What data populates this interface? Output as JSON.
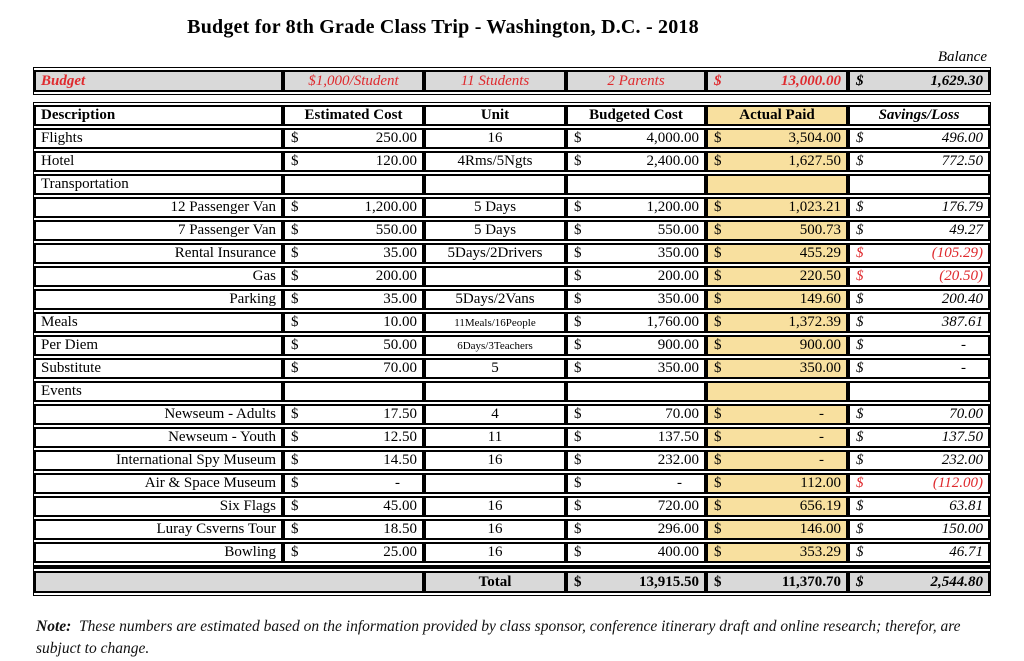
{
  "title": "Budget for 8th Grade Class Trip - Washington, D.C. - 2018",
  "balance_label": "Balance",
  "budget_row": {
    "label": "Budget",
    "per_student": "$1,000/Student",
    "students": "11 Students",
    "parents": "2 Parents",
    "total": {
      "s": "$",
      "v": "13,000.00"
    },
    "balance": {
      "s": "$",
      "v": "1,629.30"
    }
  },
  "columns": [
    "Description",
    "Estimated Cost",
    "Unit",
    "Budgeted Cost",
    "Actual Paid",
    "Savings/Loss"
  ],
  "rows": [
    {
      "desc": "Flights",
      "align": "left",
      "est": {
        "s": "$",
        "v": "250.00"
      },
      "unit": "16",
      "bud": {
        "s": "$",
        "v": "4,000.00"
      },
      "act": {
        "s": "$",
        "v": "3,504.00"
      },
      "sav": {
        "s": "$",
        "v": "496.00"
      }
    },
    {
      "desc": "Hotel",
      "align": "left",
      "est": {
        "s": "$",
        "v": "120.00"
      },
      "unit": "4Rms/5Ngts",
      "bud": {
        "s": "$",
        "v": "2,400.00"
      },
      "act": {
        "s": "$",
        "v": "1,627.50"
      },
      "sav": {
        "s": "$",
        "v": "772.50"
      }
    },
    {
      "desc": "Transportation",
      "align": "left",
      "section": true,
      "est": null,
      "unit": "",
      "bud": null,
      "act": null,
      "sav": null
    },
    {
      "desc": "12 Passenger Van",
      "align": "right",
      "est": {
        "s": "$",
        "v": "1,200.00"
      },
      "unit": "5 Days",
      "bud": {
        "s": "$",
        "v": "1,200.00"
      },
      "act": {
        "s": "$",
        "v": "1,023.21"
      },
      "sav": {
        "s": "$",
        "v": "176.79"
      }
    },
    {
      "desc": "7 Passenger Van",
      "align": "right",
      "est": {
        "s": "$",
        "v": "550.00"
      },
      "unit": "5 Days",
      "bud": {
        "s": "$",
        "v": "550.00"
      },
      "act": {
        "s": "$",
        "v": "500.73"
      },
      "sav": {
        "s": "$",
        "v": "49.27"
      }
    },
    {
      "desc": "Rental Insurance",
      "align": "right",
      "est": {
        "s": "$",
        "v": "35.00"
      },
      "unit": "5Days/2Drivers",
      "bud": {
        "s": "$",
        "v": "350.00"
      },
      "act": {
        "s": "$",
        "v": "455.29"
      },
      "sav": {
        "s": "$",
        "v": "(105.29)",
        "neg": true
      }
    },
    {
      "desc": "Gas",
      "align": "right",
      "est": {
        "s": "$",
        "v": "200.00"
      },
      "unit": "",
      "bud": {
        "s": "$",
        "v": "200.00"
      },
      "act": {
        "s": "$",
        "v": "220.50"
      },
      "sav": {
        "s": "$",
        "v": "(20.50)",
        "neg": true
      }
    },
    {
      "desc": "Parking",
      "align": "right",
      "est": {
        "s": "$",
        "v": "35.00"
      },
      "unit": "5Days/2Vans",
      "bud": {
        "s": "$",
        "v": "350.00"
      },
      "act": {
        "s": "$",
        "v": "149.60"
      },
      "sav": {
        "s": "$",
        "v": "200.40"
      }
    },
    {
      "desc": "Meals",
      "align": "left",
      "est": {
        "s": "$",
        "v": "10.00"
      },
      "unit": "11Meals/16People",
      "unit_small": true,
      "bud": {
        "s": "$",
        "v": "1,760.00"
      },
      "act": {
        "s": "$",
        "v": "1,372.39"
      },
      "sav": {
        "s": "$",
        "v": "387.61"
      }
    },
    {
      "desc": "Per Diem",
      "align": "left",
      "est": {
        "s": "$",
        "v": "50.00"
      },
      "unit": "6Days/3Teachers",
      "unit_small": true,
      "bud": {
        "s": "$",
        "v": "900.00"
      },
      "act": {
        "s": "$",
        "v": "900.00"
      },
      "sav": {
        "s": "$",
        "v": "-",
        "dash": true
      }
    },
    {
      "desc": "Substitute",
      "align": "left",
      "est": {
        "s": "$",
        "v": "70.00"
      },
      "unit": "5",
      "bud": {
        "s": "$",
        "v": "350.00"
      },
      "act": {
        "s": "$",
        "v": "350.00"
      },
      "sav": {
        "s": "$",
        "v": "-",
        "dash": true
      }
    },
    {
      "desc": "Events",
      "align": "left",
      "section": true,
      "est": null,
      "unit": "",
      "bud": null,
      "act": null,
      "sav": null
    },
    {
      "desc": "Newseum - Adults",
      "align": "right",
      "est": {
        "s": "$",
        "v": "17.50"
      },
      "unit": "4",
      "bud": {
        "s": "$",
        "v": "70.00"
      },
      "act": {
        "s": "$",
        "v": "-",
        "dash": true
      },
      "sav": {
        "s": "$",
        "v": "70.00"
      }
    },
    {
      "desc": "Newseum - Youth",
      "align": "right",
      "est": {
        "s": "$",
        "v": "12.50"
      },
      "unit": "11",
      "bud": {
        "s": "$",
        "v": "137.50"
      },
      "act": {
        "s": "$",
        "v": "-",
        "dash": true
      },
      "sav": {
        "s": "$",
        "v": "137.50"
      }
    },
    {
      "desc": "International Spy Museum",
      "align": "right",
      "est": {
        "s": "$",
        "v": "14.50"
      },
      "unit": "16",
      "bud": {
        "s": "$",
        "v": "232.00"
      },
      "act": {
        "s": "$",
        "v": "-",
        "dash": true
      },
      "sav": {
        "s": "$",
        "v": "232.00"
      }
    },
    {
      "desc": "Air & Space Museum",
      "align": "right",
      "est": {
        "s": "$",
        "v": "-",
        "dash": true
      },
      "unit": "",
      "bud": {
        "s": "$",
        "v": "-",
        "dash": true
      },
      "act": {
        "s": "$",
        "v": "112.00"
      },
      "sav": {
        "s": "$",
        "v": "(112.00)",
        "neg": true
      }
    },
    {
      "desc": "Six Flags",
      "align": "right",
      "est": {
        "s": "$",
        "v": "45.00"
      },
      "unit": "16",
      "bud": {
        "s": "$",
        "v": "720.00"
      },
      "act": {
        "s": "$",
        "v": "656.19"
      },
      "sav": {
        "s": "$",
        "v": "63.81"
      }
    },
    {
      "desc": "Luray Csverns Tour",
      "align": "right",
      "est": {
        "s": "$",
        "v": "18.50"
      },
      "unit": "16",
      "bud": {
        "s": "$",
        "v": "296.00"
      },
      "act": {
        "s": "$",
        "v": "146.00"
      },
      "sav": {
        "s": "$",
        "v": "150.00"
      }
    },
    {
      "desc": "Bowling",
      "align": "right",
      "est": {
        "s": "$",
        "v": "25.00"
      },
      "unit": "16",
      "bud": {
        "s": "$",
        "v": "400.00"
      },
      "act": {
        "s": "$",
        "v": "353.29"
      },
      "sav": {
        "s": "$",
        "v": "46.71"
      }
    }
  ],
  "total_row": {
    "label": "Total",
    "budgeted": {
      "s": "$",
      "v": "13,915.50"
    },
    "actual": {
      "s": "$",
      "v": "11,370.70"
    },
    "savings": {
      "s": "$",
      "v": "2,544.80"
    }
  },
  "note": {
    "label": "Note:",
    "text": "These numbers are estimated based on the information provided by class sponsor, conference itinerary draft and online research; therefor, are subjuct to change."
  },
  "colors": {
    "row_gray": "#D9D9D9",
    "actual_paid_tan": "#F8E09F",
    "negative_red": "#DF2A2E"
  }
}
